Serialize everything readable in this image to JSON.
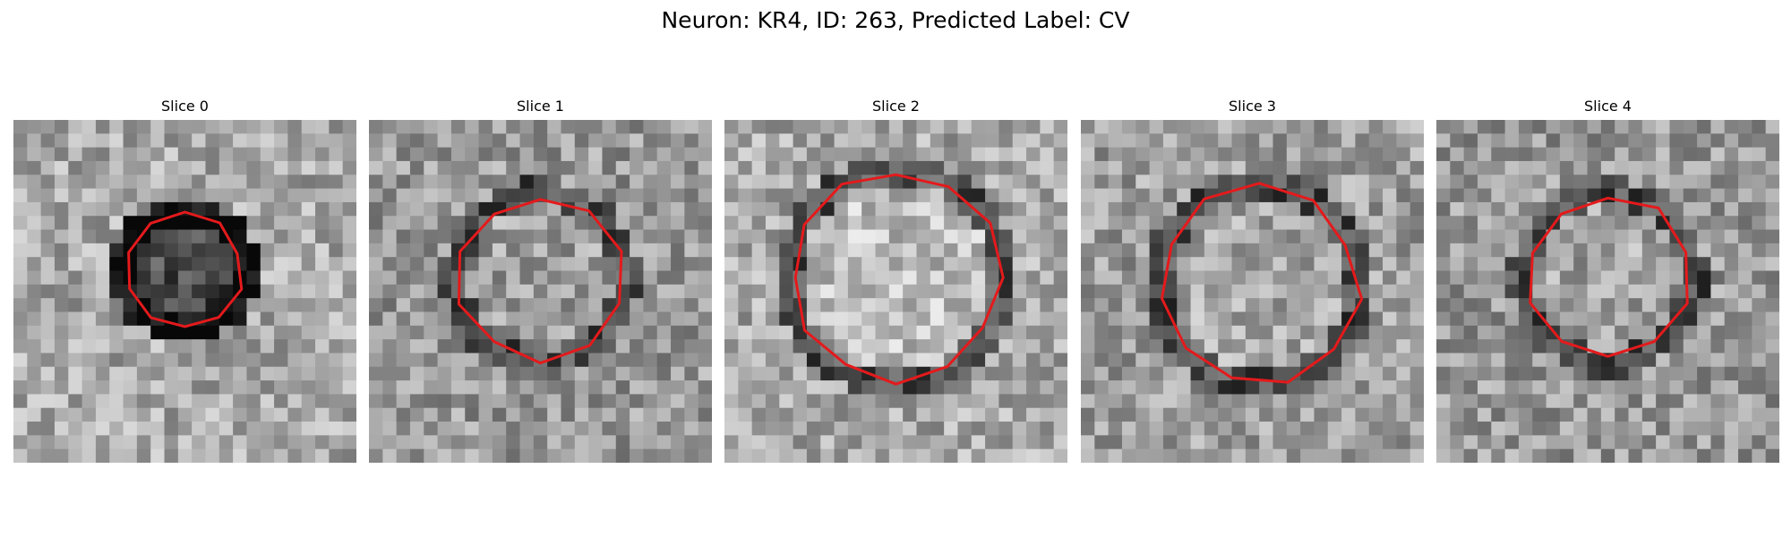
{
  "figure": {
    "title": "Neuron: KR4, ID: 263, Predicted Label: CV"
  },
  "panels": [
    {
      "title": "Slice 0",
      "contour_color": "#e41a1c"
    },
    {
      "title": "Slice 1",
      "contour_color": "#e41a1c"
    },
    {
      "title": "Slice 2",
      "contour_color": "#e41a1c"
    },
    {
      "title": "Slice 3",
      "contour_color": "#e41a1c"
    },
    {
      "title": "Slice 4",
      "contour_color": "#e41a1c"
    }
  ]
}
